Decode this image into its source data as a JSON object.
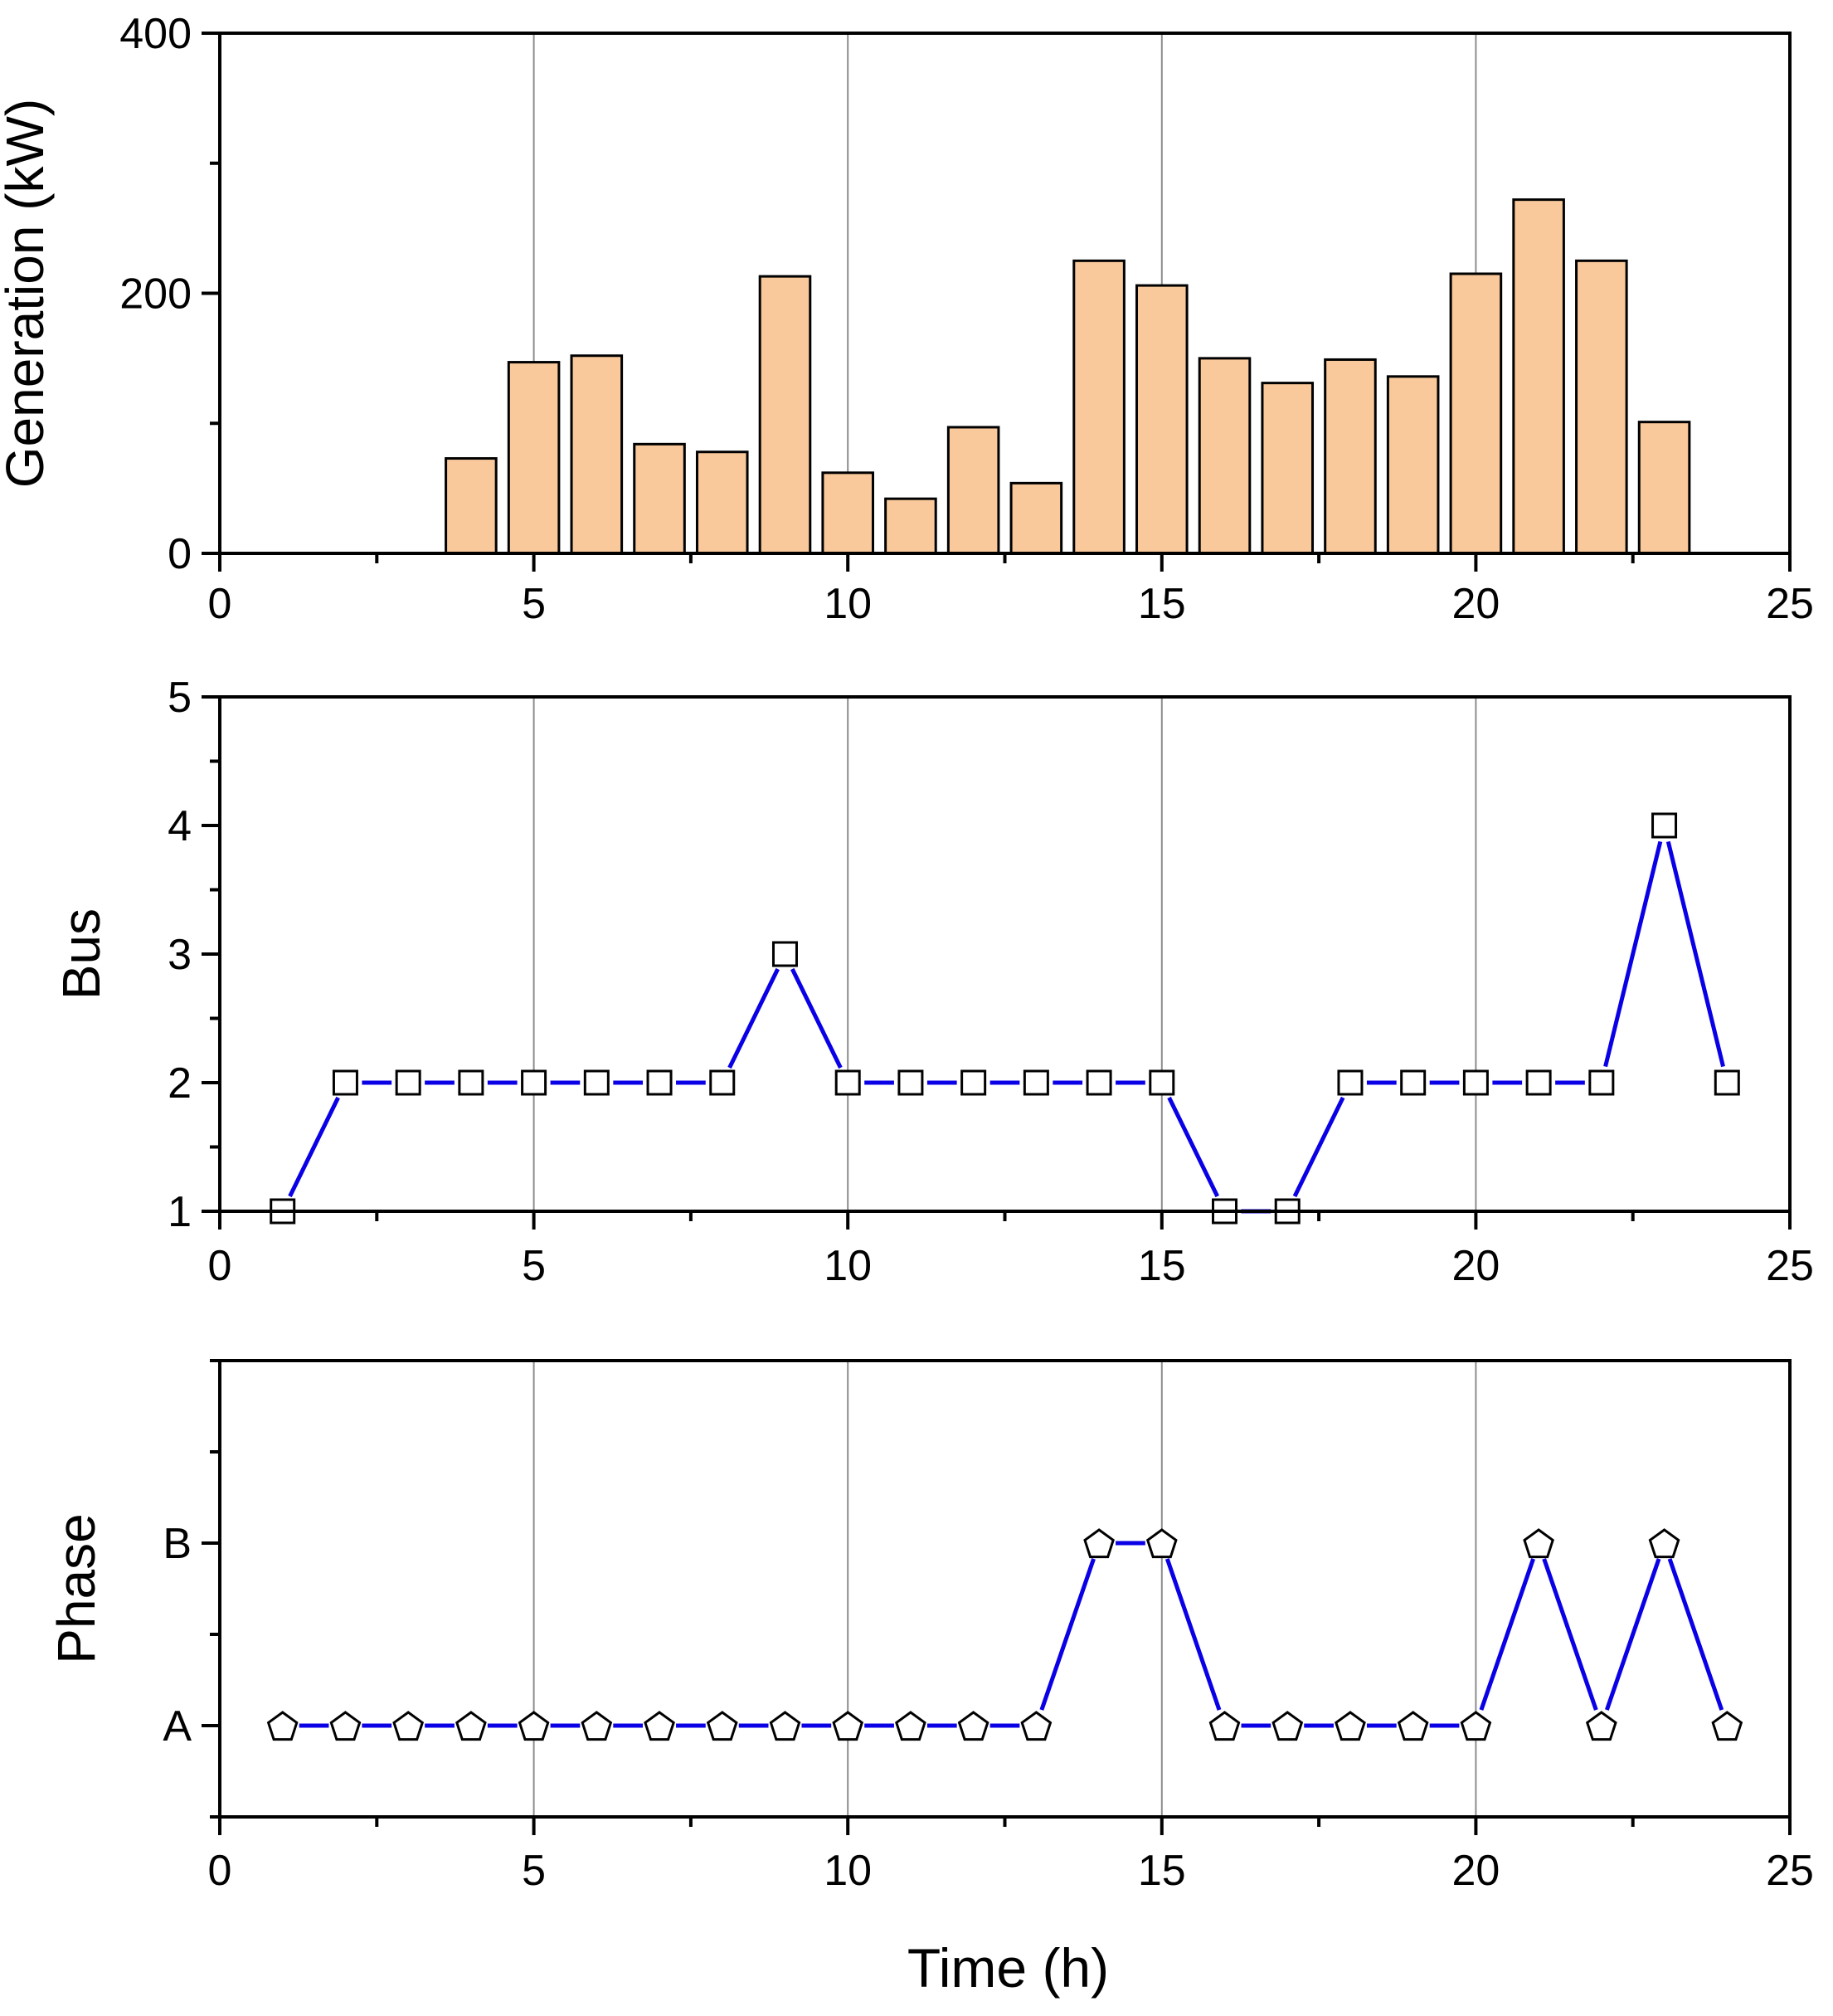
{
  "chart_data": [
    {
      "id": "generation",
      "type": "bar",
      "title": "",
      "xlabel": "",
      "ylabel": "Generation (kW)",
      "xlim": [
        0,
        25
      ],
      "ylim": [
        0,
        400
      ],
      "x_ticks": [
        0,
        5,
        10,
        15,
        20,
        25
      ],
      "y_ticks": [
        0,
        200,
        400
      ],
      "vertical_grid": [
        5,
        10,
        15,
        20
      ],
      "bar_width": 0.8,
      "bar_color": "#f9c99b",
      "x": [
        4,
        5,
        6,
        7,
        8,
        9,
        10,
        11,
        12,
        13,
        14,
        15,
        16,
        17,
        18,
        19,
        20,
        21,
        22,
        23
      ],
      "values": [
        73,
        147,
        152,
        84,
        78,
        213,
        62,
        42,
        97,
        54,
        225,
        206,
        150,
        131,
        149,
        136,
        215,
        272,
        225,
        101
      ]
    },
    {
      "id": "bus",
      "type": "line",
      "title": "",
      "xlabel": "",
      "ylabel": "Bus",
      "xlim": [
        0,
        25
      ],
      "ylim": [
        1,
        5
      ],
      "x_ticks": [
        0,
        5,
        10,
        15,
        20,
        25
      ],
      "y_ticks": [
        1,
        2,
        3,
        4,
        5
      ],
      "vertical_grid": [
        5,
        10,
        15,
        20
      ],
      "marker": "square",
      "line_color": "#0a00e6",
      "x": [
        1,
        2,
        3,
        4,
        5,
        6,
        7,
        8,
        9,
        10,
        11,
        12,
        13,
        14,
        15,
        16,
        17,
        18,
        19,
        20,
        21,
        22,
        23,
        24
      ],
      "y": [
        1,
        2,
        2,
        2,
        2,
        2,
        2,
        2,
        3,
        2,
        2,
        2,
        2,
        2,
        2,
        1,
        1,
        2,
        2,
        2,
        2,
        2,
        4,
        2
      ]
    },
    {
      "id": "phase",
      "type": "line",
      "title": "",
      "xlabel": "Time (h)",
      "ylabel": "Phase",
      "xlim": [
        0,
        25
      ],
      "ylim": [
        0.5,
        3
      ],
      "x_ticks": [
        0,
        5,
        10,
        15,
        20,
        25
      ],
      "y_tick_values": [
        1,
        2
      ],
      "y_tick_labels": [
        "A",
        "B"
      ],
      "vertical_grid": [
        5,
        10,
        15,
        20
      ],
      "marker": "pentagon",
      "line_color": "#0a00e6",
      "x": [
        1,
        2,
        3,
        4,
        5,
        6,
        7,
        8,
        9,
        10,
        11,
        12,
        13,
        14,
        15,
        16,
        17,
        18,
        19,
        20,
        21,
        22,
        23,
        24
      ],
      "y": [
        1,
        1,
        1,
        1,
        1,
        1,
        1,
        1,
        1,
        1,
        1,
        1,
        1,
        2,
        2,
        1,
        1,
        1,
        1,
        1,
        2,
        1,
        2,
        1
      ]
    }
  ]
}
